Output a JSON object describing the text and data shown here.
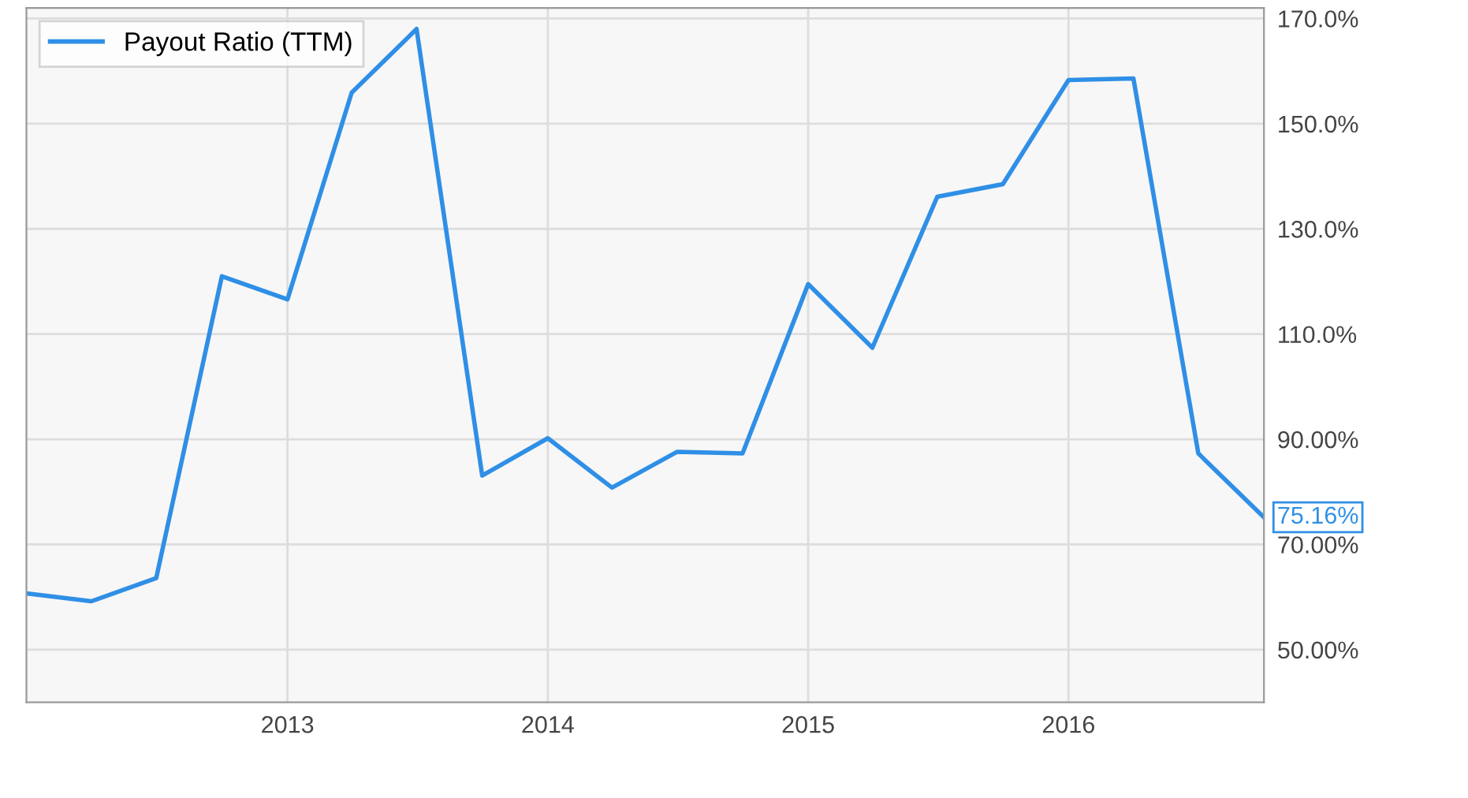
{
  "chart_data": {
    "type": "line",
    "x": [
      "2012-01-01",
      "2012-04-01",
      "2012-07-01",
      "2012-10-01",
      "2013-01-01",
      "2013-04-01",
      "2013-07-01",
      "2013-10-01",
      "2014-01-01",
      "2014-04-01",
      "2014-07-01",
      "2014-10-01",
      "2015-01-01",
      "2015-04-01",
      "2015-07-01",
      "2015-10-01",
      "2016-01-01",
      "2016-04-01",
      "2016-07-01",
      "2016-10-01"
    ],
    "series": [
      {
        "name": "Payout Ratio (TTM)",
        "color": "#2f8fe6",
        "values": [
          60.7,
          59.2,
          63.6,
          121.0,
          116.6,
          155.9,
          168.0,
          83.1,
          90.2,
          80.8,
          87.6,
          87.3,
          119.5,
          107.4,
          136.1,
          138.5,
          158.3,
          158.6,
          87.3,
          75.16
        ],
        "value_labels": [
          null,
          null,
          null,
          null,
          null,
          null,
          null,
          null,
          null,
          null,
          null,
          null,
          null,
          null,
          null,
          null,
          null,
          null,
          null,
          "75.16%"
        ]
      }
    ],
    "xlim": [
      "2012-01-01",
      "2016-10-01"
    ],
    "xticks": [
      {
        "value": "2013-01-01",
        "label": "2013"
      },
      {
        "value": "2014-01-01",
        "label": "2014"
      },
      {
        "value": "2015-01-01",
        "label": "2015"
      },
      {
        "value": "2016-01-01",
        "label": "2016"
      }
    ],
    "ylim": [
      40,
      172
    ],
    "yticks": [
      {
        "value": 50,
        "label": "50.00%"
      },
      {
        "value": 70,
        "label": "70.00%"
      },
      {
        "value": 90,
        "label": "90.00%"
      },
      {
        "value": 110,
        "label": "110.0%"
      },
      {
        "value": 130,
        "label": "130.0%"
      },
      {
        "value": 150,
        "label": "150.0%"
      },
      {
        "value": 170,
        "label": "170.0%"
      }
    ],
    "grid": true,
    "legend": "top left",
    "marker": "none",
    "line_style": "solid"
  }
}
